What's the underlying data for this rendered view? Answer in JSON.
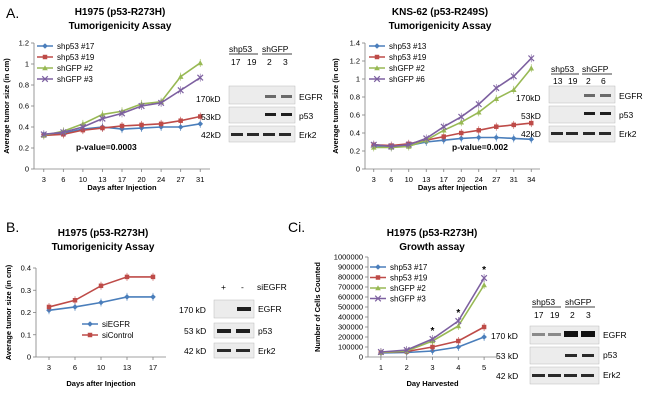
{
  "chart_data": [
    {
      "panel": "A.",
      "type": "line",
      "title": "H1975 (p53-R273H)",
      "subtitle": "Tumorigenicity Assay",
      "xlabel": "Days after Injection",
      "ylabel": "Average tumor size (in cm)",
      "x": [
        3,
        6,
        10,
        13,
        17,
        20,
        24,
        27,
        31
      ],
      "ylim": [
        0,
        1.2
      ],
      "yticks": [
        "0",
        "0.2",
        "0.4",
        "0.6",
        "0.8",
        "1",
        "1.2"
      ],
      "legend": "top-left",
      "annotation": "p-value=0.0003",
      "series": [
        {
          "name": "shp53 #17",
          "color": "#4a7ebb",
          "marker": "diamond",
          "values": [
            0.33,
            0.34,
            0.38,
            0.4,
            0.38,
            0.39,
            0.4,
            0.4,
            0.43
          ]
        },
        {
          "name": "shp53 #19",
          "color": "#be4b48",
          "marker": "square",
          "values": [
            0.32,
            0.33,
            0.37,
            0.39,
            0.41,
            0.42,
            0.43,
            0.46,
            0.5
          ]
        },
        {
          "name": "shGFP #2",
          "color": "#98b954",
          "marker": "triangle",
          "values": [
            0.32,
            0.36,
            0.43,
            0.52,
            0.55,
            0.62,
            0.64,
            0.88,
            1.01
          ]
        },
        {
          "name": "shGFP #3",
          "color": "#7d60a0",
          "marker": "x",
          "values": [
            0.33,
            0.35,
            0.4,
            0.48,
            0.53,
            0.6,
            0.63,
            0.75,
            0.87
          ]
        }
      ]
    },
    {
      "panel": "",
      "type": "line",
      "title": "KNS-62 (p53-R249S)",
      "subtitle": "Tumorigenicity Assay",
      "xlabel": "Days after Injection",
      "ylabel": "Average tumor size (in cm)",
      "x": [
        3,
        6,
        10,
        13,
        17,
        20,
        24,
        27,
        31,
        34
      ],
      "ylim": [
        0,
        1.4
      ],
      "yticks": [
        "0",
        "0.2",
        "0.4",
        "0.6",
        "0.8",
        "1",
        "1.2",
        "1.4"
      ],
      "legend": "top-left",
      "annotation": "p-value=0.002",
      "series": [
        {
          "name": "shp53 #13",
          "color": "#4a7ebb",
          "marker": "diamond",
          "values": [
            0.26,
            0.24,
            0.26,
            0.3,
            0.32,
            0.34,
            0.35,
            0.35,
            0.34,
            0.33
          ]
        },
        {
          "name": "shp53 #19",
          "color": "#be4b48",
          "marker": "square",
          "values": [
            0.27,
            0.26,
            0.28,
            0.32,
            0.36,
            0.4,
            0.43,
            0.47,
            0.49,
            0.51
          ]
        },
        {
          "name": "shGFP #2",
          "color": "#98b954",
          "marker": "triangle",
          "values": [
            0.24,
            0.24,
            0.25,
            0.32,
            0.43,
            0.52,
            0.63,
            0.78,
            0.88,
            1.12
          ]
        },
        {
          "name": "shGFP #6",
          "color": "#7d60a0",
          "marker": "x",
          "values": [
            0.27,
            0.25,
            0.27,
            0.34,
            0.47,
            0.58,
            0.72,
            0.9,
            1.03,
            1.23
          ]
        }
      ]
    },
    {
      "panel": "B.",
      "type": "line",
      "title": "H1975 (p53-R273H)",
      "subtitle": "Tumorigenicity Assay",
      "xlabel": "Days after Injection",
      "ylabel": "Average tumor size (in cm)",
      "x": [
        3,
        6,
        10,
        13,
        17
      ],
      "ylim": [
        0,
        0.4
      ],
      "yticks": [
        "0",
        "0.1",
        "0.2",
        "0.3",
        "0.4"
      ],
      "legend": "bottom-right",
      "annotation": "",
      "series": [
        {
          "name": "siEGFR",
          "color": "#4a7ebb",
          "marker": "diamond",
          "values": [
            0.21,
            0.225,
            0.245,
            0.27,
            0.27
          ]
        },
        {
          "name": "siControl",
          "color": "#be4b48",
          "marker": "square",
          "values": [
            0.225,
            0.255,
            0.32,
            0.36,
            0.36
          ]
        }
      ]
    },
    {
      "panel": "Ci.",
      "type": "line",
      "title": "H1975 (p53-R273H)",
      "subtitle": "Growth assay",
      "xlabel": "Day Harvested",
      "ylabel": "Number of Cells Counted",
      "x": [
        1,
        2,
        3,
        4,
        5
      ],
      "ylim": [
        0,
        1000000
      ],
      "yticks": [
        "0",
        "100000",
        "200000",
        "300000",
        "400000",
        "500000",
        "600000",
        "700000",
        "800000",
        "900000",
        "1000000"
      ],
      "legend": "top-left",
      "annotation": "*",
      "series": [
        {
          "name": "shp53 #17",
          "color": "#4a7ebb",
          "marker": "diamond",
          "values": [
            40000,
            45000,
            60000,
            100000,
            200000
          ]
        },
        {
          "name": "shp53 #19",
          "color": "#be4b48",
          "marker": "square",
          "values": [
            45000,
            55000,
            100000,
            160000,
            300000
          ]
        },
        {
          "name": "shGFP #2",
          "color": "#98b954",
          "marker": "triangle",
          "values": [
            45000,
            60000,
            160000,
            310000,
            720000
          ]
        },
        {
          "name": "shGFP #3",
          "color": "#7d60a0",
          "marker": "x",
          "values": [
            50000,
            70000,
            180000,
            360000,
            790000
          ]
        }
      ]
    }
  ],
  "blots": {
    "A1": {
      "header_groups": [
        "shp53",
        "shGFP"
      ],
      "lanes": [
        "17",
        "19",
        "2",
        "3"
      ],
      "sizes": [
        "170kD",
        "53kD",
        "42kD"
      ],
      "proteins": [
        "EGFR",
        "p53",
        "Erk2"
      ]
    },
    "A2": {
      "header_groups": [
        "shp53",
        "shGFP"
      ],
      "lanes": [
        "13",
        "19",
        "2",
        "6"
      ],
      "sizes": [
        "170kD",
        "53kD",
        "42kD"
      ],
      "proteins": [
        "EGFR",
        "p53",
        "Erk2"
      ]
    },
    "B": {
      "lanes": [
        "+",
        "-"
      ],
      "treatment": "siEGFR",
      "sizes": [
        "170 kD",
        "53 kD",
        "42 kD"
      ],
      "proteins": [
        "EGFR",
        "p53",
        "Erk2"
      ]
    },
    "C": {
      "header_groups": [
        "shp53",
        "shGFP"
      ],
      "lanes": [
        "17",
        "19",
        "2",
        "3"
      ],
      "sizes": [
        "170 kD",
        "53 kD",
        "42 kD"
      ],
      "proteins": [
        "EGFR",
        "p53",
        "Erk2"
      ]
    }
  }
}
